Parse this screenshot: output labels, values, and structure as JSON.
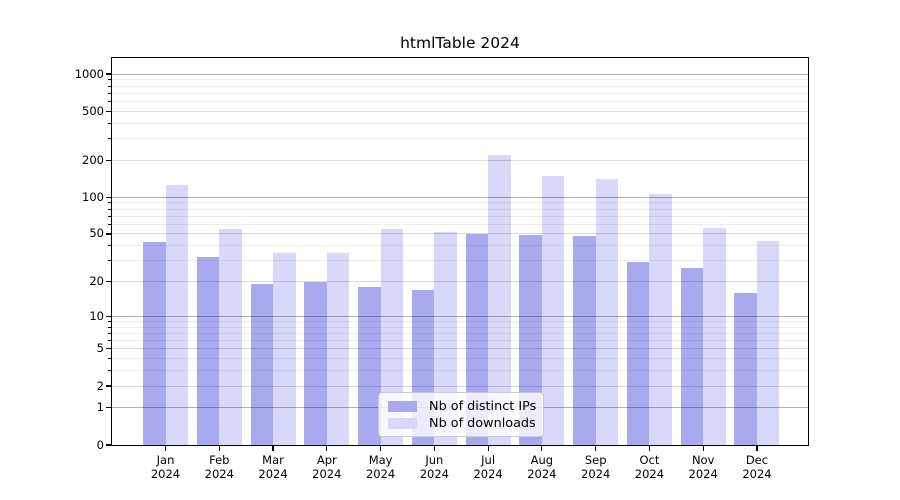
{
  "chart_data": {
    "type": "bar",
    "title": "htmlTable 2024",
    "scale": "log1p",
    "categories": [
      "Jan",
      "Feb",
      "Mar",
      "Apr",
      "May",
      "Jun",
      "Jul",
      "Aug",
      "Sep",
      "Oct",
      "Nov",
      "Dec"
    ],
    "year": "2024",
    "series": [
      {
        "name": "Nb of distinct IPs",
        "color": "#a9a9f0",
        "values": [
          43,
          32,
          19,
          20,
          18,
          17,
          50,
          49,
          48,
          29,
          26,
          16
        ]
      },
      {
        "name": "Nb of downloads",
        "color": "#d8d8fa",
        "values": [
          127,
          55,
          35,
          35,
          55,
          52,
          220,
          150,
          140,
          107,
          56,
          44
        ]
      }
    ],
    "y_ticks": [
      0,
      1,
      2,
      5,
      10,
      20,
      50,
      100,
      200,
      500,
      1000
    ],
    "y_minor_ticks": [
      3,
      4,
      6,
      7,
      8,
      9,
      30,
      40,
      60,
      70,
      80,
      90,
      300,
      400,
      600,
      700,
      800,
      900
    ],
    "ylim": [
      0,
      1350
    ],
    "xlabel": "",
    "ylabel": "",
    "grid": true,
    "legend_position": "lower center"
  }
}
